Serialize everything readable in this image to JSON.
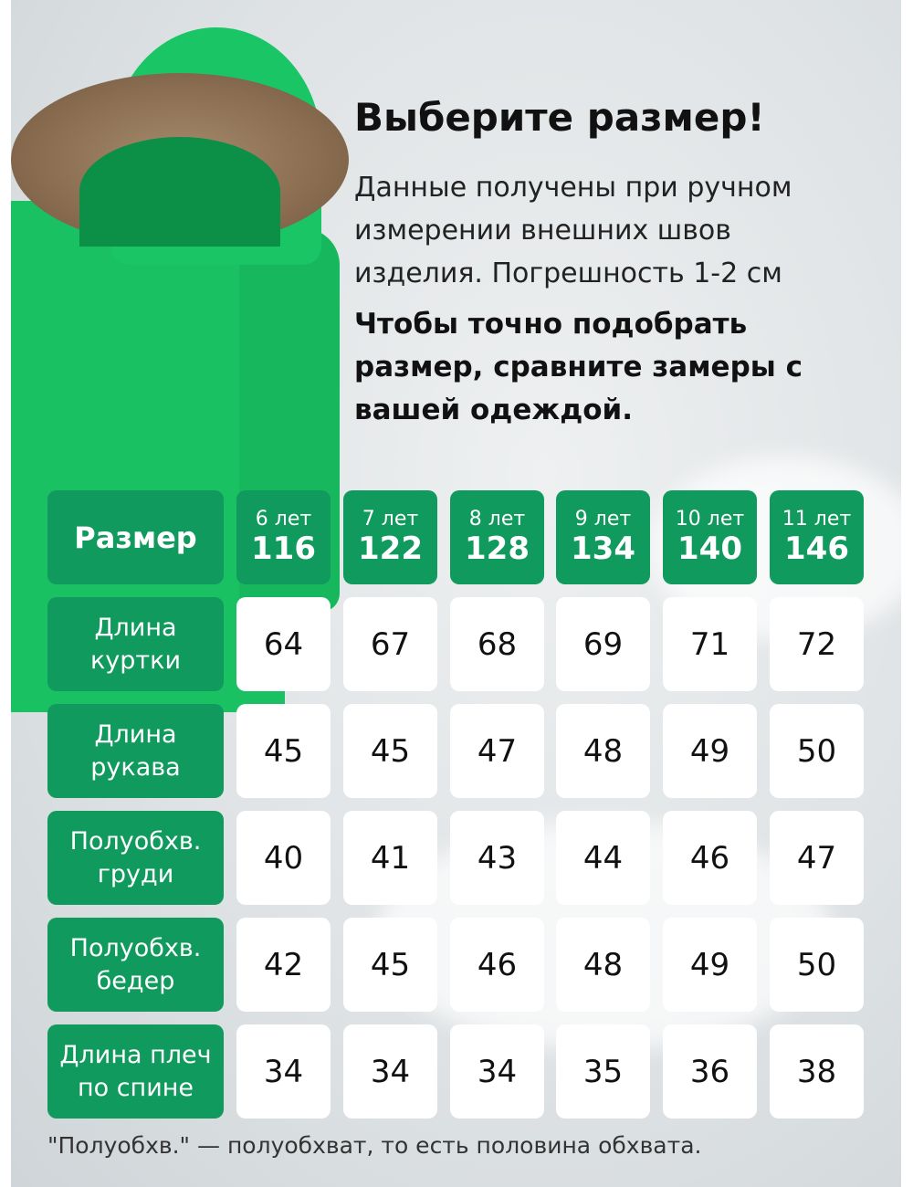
{
  "title": "Выберите размер!",
  "description": "Данные получены при ручном измерении внешних швов изделия. Погрешность 1-2 см",
  "advice": "Чтобы точно подобрать размер, сравните замеры с вашей одеждой.",
  "table": {
    "header_label": "Размер",
    "sizes": [
      {
        "age": "6 лет",
        "height": "116"
      },
      {
        "age": "7 лет",
        "height": "122"
      },
      {
        "age": "8 лет",
        "height": "128"
      },
      {
        "age": "9 лет",
        "height": "134"
      },
      {
        "age": "10 лет",
        "height": "140"
      },
      {
        "age": "11 лет",
        "height": "146"
      }
    ],
    "rows": [
      {
        "label": "Длина куртки",
        "values": [
          "64",
          "67",
          "68",
          "69",
          "71",
          "72"
        ]
      },
      {
        "label": "Длина рукава",
        "values": [
          "45",
          "45",
          "47",
          "48",
          "49",
          "50"
        ]
      },
      {
        "label": "Полуобхв. груди",
        "values": [
          "40",
          "41",
          "43",
          "44",
          "46",
          "47"
        ]
      },
      {
        "label": "Полуобхв. бедер",
        "values": [
          "42",
          "45",
          "46",
          "48",
          "49",
          "50"
        ]
      },
      {
        "label": "Длина плеч по спине",
        "values": [
          "34",
          "34",
          "34",
          "35",
          "36",
          "38"
        ]
      }
    ]
  },
  "footnote": "\"Полуобхв.\" — полуобхват, то есть половина обхвата.",
  "colors": {
    "accent": "#109a5e",
    "jacket": "#19c163"
  }
}
